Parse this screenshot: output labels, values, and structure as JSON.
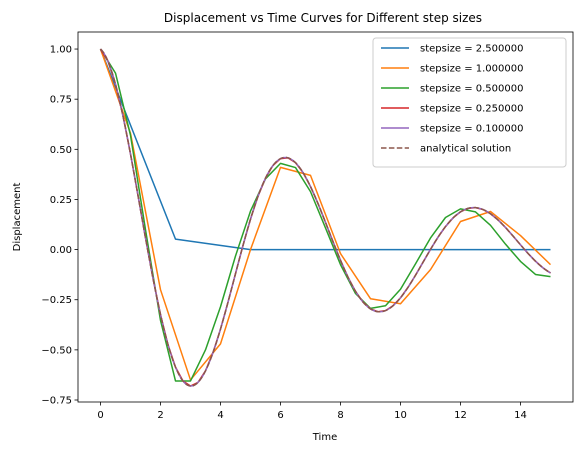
{
  "chart_data": {
    "type": "line",
    "title": "Displacement vs Time Curves for Different step sizes",
    "xlabel": "Time",
    "ylabel": "Displacement",
    "xlim": [
      -0.75,
      15.75
    ],
    "ylim": [
      -0.76,
      1.085
    ],
    "xticks": [
      0,
      2,
      4,
      6,
      8,
      10,
      12,
      14
    ],
    "yticks": [
      -0.75,
      -0.5,
      -0.25,
      0.0,
      0.25,
      0.5,
      0.75,
      1.0
    ],
    "xtick_labels": [
      "0",
      "2",
      "4",
      "6",
      "8",
      "10",
      "12",
      "14"
    ],
    "ytick_labels": [
      "−0.75",
      "−0.50",
      "−0.25",
      "0.00",
      "0.25",
      "0.50",
      "0.75",
      "1.00"
    ],
    "grid": false,
    "legend_position": "top-right",
    "series": [
      {
        "name": "stepsize = 2.500000",
        "color": "#1f77b4",
        "style": "solid",
        "x": [
          0,
          2.5,
          5,
          7.5,
          10,
          12.5,
          15
        ],
        "y": [
          1.0,
          0.052,
          0.0,
          0.0,
          0.0,
          0.0,
          0.0
        ]
      },
      {
        "name": "stepsize = 1.000000",
        "color": "#ff7f0e",
        "style": "solid",
        "x": [
          0,
          1,
          2,
          3,
          4,
          5,
          6,
          7,
          8,
          9,
          10,
          11,
          12,
          13,
          14,
          15
        ],
        "y": [
          1.0,
          0.58,
          -0.2,
          -0.65,
          -0.47,
          0.0,
          0.41,
          0.37,
          -0.02,
          -0.245,
          -0.27,
          -0.1,
          0.14,
          0.19,
          0.07,
          -0.075
        ]
      },
      {
        "name": "stepsize = 0.500000",
        "color": "#2ca02c",
        "style": "solid",
        "x": [
          0,
          0.5,
          1,
          1.5,
          2,
          2.5,
          3,
          3.5,
          4,
          4.5,
          5,
          5.5,
          6,
          6.5,
          7,
          7.5,
          8,
          8.5,
          9,
          9.5,
          10,
          10.5,
          11,
          11.5,
          12,
          12.5,
          13,
          13.5,
          14,
          14.5,
          15
        ],
        "y": [
          1.0,
          0.88,
          0.57,
          0.099,
          -0.353,
          -0.655,
          -0.655,
          -0.5,
          -0.285,
          -0.032,
          0.192,
          0.353,
          0.43,
          0.409,
          0.289,
          0.108,
          -0.075,
          -0.219,
          -0.293,
          -0.28,
          -0.198,
          -0.071,
          0.058,
          0.16,
          0.203,
          0.188,
          0.121,
          0.027,
          -0.059,
          -0.124,
          -0.135
        ]
      },
      {
        "name": "stepsize = 0.250000",
        "color": "#d62728",
        "style": "solid",
        "step": 0.25
      },
      {
        "name": "stepsize = 0.100000",
        "color": "#9467bd",
        "style": "solid",
        "step": 0.1
      },
      {
        "name": "analytical solution",
        "color": "#8c564b",
        "style": "dashed",
        "step": 0.05
      }
    ]
  }
}
